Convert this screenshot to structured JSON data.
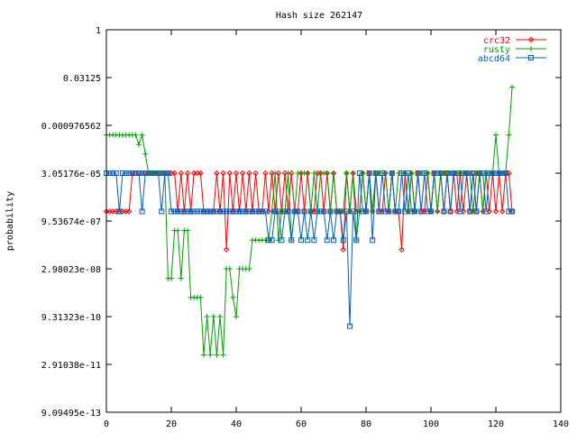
{
  "chart_data": {
    "type": "line",
    "title": "Hash size 262147",
    "xlabel": "",
    "ylabel": "probability",
    "xlim": [
      0,
      140
    ],
    "ylim_log2": [
      -40,
      0
    ],
    "y_scale": "log2",
    "x_ticks": [
      0,
      20,
      40,
      60,
      80,
      100,
      120,
      140
    ],
    "y_ticks": [
      {
        "exp": 0,
        "label": "1"
      },
      {
        "exp": -5,
        "label": "0.03125"
      },
      {
        "exp": -10,
        "label": "0.000976562"
      },
      {
        "exp": -15,
        "label": "3.05176e-05"
      },
      {
        "exp": -20,
        "label": "9.53674e-07"
      },
      {
        "exp": -25,
        "label": "2.98023e-08"
      },
      {
        "exp": -30,
        "label": "9.31323e-10"
      },
      {
        "exp": -35,
        "label": "2.91038e-11"
      },
      {
        "exp": -40,
        "label": "9.09495e-13"
      }
    ],
    "legend_position": "top-right",
    "series": [
      {
        "name": "crc32",
        "color": "#ff0000",
        "marker": "diamond",
        "x": [
          0,
          1,
          2,
          3,
          4,
          5,
          6,
          7,
          8,
          9,
          10,
          11,
          12,
          13,
          14,
          15,
          16,
          17,
          18,
          19,
          20,
          21,
          22,
          23,
          24,
          25,
          26,
          27,
          28,
          29,
          30,
          31,
          32,
          33,
          34,
          35,
          36,
          37,
          38,
          39,
          40,
          41,
          42,
          43,
          44,
          45,
          46,
          47,
          48,
          49,
          50,
          51,
          52,
          53,
          54,
          55,
          56,
          57,
          58,
          59,
          60,
          61,
          62,
          63,
          64,
          65,
          66,
          67,
          68,
          69,
          70,
          71,
          72,
          73,
          74,
          75,
          76,
          77,
          78,
          79,
          80,
          81,
          82,
          83,
          84,
          85,
          86,
          87,
          88,
          89,
          90,
          91,
          92,
          93,
          94,
          95,
          96,
          97,
          98,
          99,
          100,
          101,
          102,
          103,
          104,
          105,
          106,
          107,
          108,
          109,
          110,
          111,
          112,
          113,
          114,
          115,
          116,
          117,
          118,
          119,
          120,
          121,
          122,
          123,
          124,
          125
        ],
        "y_log2": [
          -19,
          -19,
          -19,
          -19,
          -19,
          -19,
          -19,
          -19,
          -15,
          -15,
          -15,
          -15,
          -15,
          -15,
          -15,
          -15,
          -15,
          -15,
          -15,
          -15,
          -15,
          -15,
          -19,
          -15,
          -19,
          -15,
          -19,
          -15,
          -15,
          -15,
          -19,
          -19,
          -19,
          -19,
          -15,
          -19,
          -15,
          -23,
          -15,
          -19,
          -15,
          -19,
          -15,
          -19,
          -15,
          -19,
          -15,
          -19,
          -19,
          -15,
          -19,
          -15,
          -19,
          -15,
          -19,
          -15,
          -19,
          -15,
          -19,
          -19,
          -15,
          -19,
          -15,
          -19,
          -19,
          -15,
          -15,
          -19,
          -15,
          -19,
          -15,
          -19,
          -19,
          -23,
          -15,
          -19,
          -15,
          -19,
          -19,
          -15,
          -19,
          -15,
          -19,
          -15,
          -19,
          -19,
          -15,
          -19,
          -15,
          -19,
          -19,
          -23,
          -15,
          -19,
          -15,
          -19,
          -15,
          -19,
          -19,
          -15,
          -19,
          -15,
          -19,
          -15,
          -19,
          -15,
          -19,
          -15,
          -19,
          -15,
          -19,
          -15,
          -19,
          -15,
          -19,
          -15,
          -19,
          -15,
          -19,
          -15,
          -19,
          -15,
          -19,
          -15,
          -15,
          -19
        ]
      },
      {
        "name": "rusty",
        "color": "#00a000",
        "marker": "plus",
        "x": [
          0,
          1,
          2,
          3,
          4,
          5,
          6,
          7,
          8,
          9,
          10,
          11,
          12,
          13,
          14,
          15,
          16,
          17,
          18,
          19,
          20,
          21,
          22,
          23,
          24,
          25,
          26,
          27,
          28,
          29,
          30,
          31,
          32,
          33,
          34,
          35,
          36,
          37,
          38,
          39,
          40,
          41,
          42,
          43,
          44,
          45,
          46,
          47,
          48,
          49,
          50,
          51,
          52,
          53,
          54,
          55,
          56,
          57,
          58,
          59,
          60,
          61,
          62,
          63,
          64,
          65,
          66,
          67,
          68,
          69,
          70,
          71,
          72,
          73,
          74,
          75,
          76,
          77,
          78,
          79,
          80,
          81,
          82,
          83,
          84,
          85,
          86,
          87,
          88,
          89,
          90,
          91,
          92,
          93,
          94,
          95,
          96,
          97,
          98,
          99,
          100,
          101,
          102,
          103,
          104,
          105,
          106,
          107,
          108,
          109,
          110,
          111,
          112,
          113,
          114,
          115,
          116,
          117,
          118,
          119,
          120,
          121,
          122,
          123,
          124,
          125
        ],
        "y_log2": [
          -11,
          -11,
          -11,
          -11,
          -11,
          -11,
          -11,
          -11,
          -11,
          -11,
          -12,
          -11,
          -13,
          -15,
          -15,
          -15,
          -15,
          -15,
          -15,
          -26,
          -26,
          -21,
          -21,
          -26,
          -21,
          -21,
          -28,
          -28,
          -28,
          -28,
          -34,
          -30,
          -34,
          -30,
          -34,
          -30,
          -34,
          -25,
          -25,
          -28,
          -30,
          -25,
          -25,
          -25,
          -25,
          -22,
          -22,
          -22,
          -22,
          -22,
          -22,
          -19,
          -15,
          -22,
          -19,
          -19,
          -15,
          -22,
          -19,
          -15,
          -15,
          -15,
          -15,
          -19,
          -15,
          -19,
          -15,
          -15,
          -15,
          -19,
          -15,
          -19,
          -19,
          -19,
          -15,
          -19,
          -15,
          -22,
          -19,
          -15,
          -19,
          -15,
          -19,
          -15,
          -15,
          -15,
          -15,
          -19,
          -15,
          -19,
          -15,
          -15,
          -15,
          -19,
          -15,
          -19,
          -15,
          -15,
          -15,
          -15,
          -19,
          -15,
          -19,
          -15,
          -15,
          -15,
          -15,
          -15,
          -15,
          -15,
          -15,
          -15,
          -15,
          -19,
          -15,
          -15,
          -19,
          -15,
          -15,
          -15,
          -11,
          -15,
          -15,
          -15,
          -11,
          -6
        ]
      },
      {
        "name": "abcd64",
        "color": "#0060c0",
        "marker": "square",
        "x": [
          0,
          1,
          2,
          3,
          4,
          5,
          6,
          7,
          8,
          9,
          10,
          11,
          12,
          13,
          14,
          15,
          16,
          17,
          18,
          19,
          20,
          21,
          22,
          23,
          24,
          25,
          26,
          27,
          28,
          29,
          30,
          31,
          32,
          33,
          34,
          35,
          36,
          37,
          38,
          39,
          40,
          41,
          42,
          43,
          44,
          45,
          46,
          47,
          48,
          49,
          50,
          51,
          52,
          53,
          54,
          55,
          56,
          57,
          58,
          59,
          60,
          61,
          62,
          63,
          64,
          65,
          66,
          67,
          68,
          69,
          70,
          71,
          72,
          73,
          74,
          75,
          76,
          77,
          78,
          79,
          80,
          81,
          82,
          83,
          84,
          85,
          86,
          87,
          88,
          89,
          90,
          91,
          92,
          93,
          94,
          95,
          96,
          97,
          98,
          99,
          100,
          101,
          102,
          103,
          104,
          105,
          106,
          107,
          108,
          109,
          110,
          111,
          112,
          113,
          114,
          115,
          116,
          117,
          118,
          119,
          120,
          121,
          122,
          123,
          124,
          125
        ],
        "y_log2": [
          -15,
          -15,
          -15,
          -15,
          -19,
          -15,
          -15,
          -15,
          -15,
          -15,
          -15,
          -19,
          -15,
          -15,
          -15,
          -15,
          -15,
          -19,
          -15,
          -15,
          -19,
          -19,
          -19,
          -19,
          -19,
          -19,
          -19,
          -19,
          -19,
          -19,
          -19,
          -19,
          -19,
          -19,
          -19,
          -19,
          -19,
          -19,
          -19,
          -19,
          -19,
          -19,
          -19,
          -19,
          -19,
          -19,
          -19,
          -19,
          -19,
          -19,
          -22,
          -22,
          -19,
          -19,
          -22,
          -19,
          -19,
          -22,
          -19,
          -19,
          -22,
          -19,
          -22,
          -19,
          -22,
          -19,
          -19,
          -19,
          -22,
          -19,
          -22,
          -19,
          -19,
          -22,
          -19,
          -31,
          -19,
          -22,
          -15,
          -19,
          -19,
          -15,
          -22,
          -15,
          -19,
          -15,
          -19,
          -19,
          -15,
          -19,
          -19,
          -15,
          -19,
          -15,
          -19,
          -19,
          -15,
          -19,
          -15,
          -19,
          -19,
          -15,
          -15,
          -15,
          -19,
          -15,
          -19,
          -15,
          -15,
          -19,
          -15,
          -15,
          -19,
          -15,
          -19,
          -15,
          -15,
          -19,
          -15,
          -15,
          -15,
          -15,
          -15,
          -15,
          -19,
          -19
        ]
      }
    ]
  }
}
